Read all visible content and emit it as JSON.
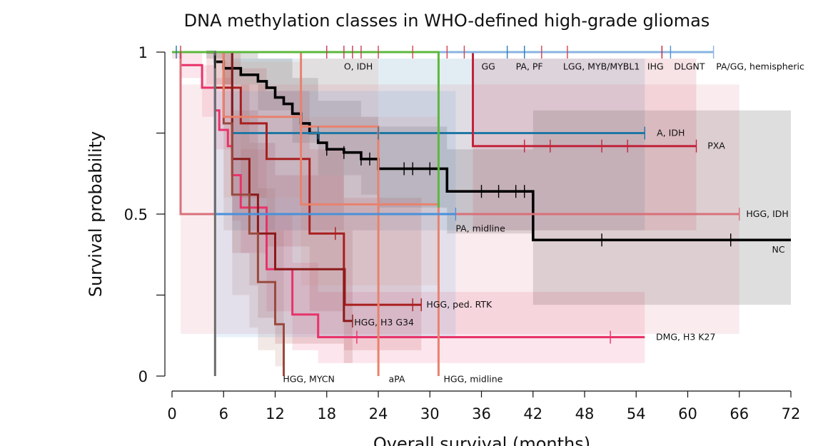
{
  "chart_data": {
    "type": "line",
    "subtype": "kaplan-meier",
    "title": "DNA methylation classes in WHO-defined high-grade gliomas",
    "xlabel": "Overall survival (months)",
    "ylabel": "Survival probability",
    "xlim": [
      0,
      72
    ],
    "ylim": [
      0,
      1
    ],
    "x_ticks": [
      0,
      6,
      12,
      18,
      24,
      30,
      36,
      42,
      48,
      54,
      60,
      66,
      72
    ],
    "x_tick_labels": [
      "0",
      "6",
      "12",
      "18",
      "24",
      "30",
      "36",
      "42",
      "48",
      "54",
      "60",
      "66",
      "72"
    ],
    "y_ticks": [
      0,
      0.25,
      0.5,
      0.75,
      1
    ],
    "y_tick_labels": {
      "0": "0",
      "0.5": "0.5",
      "1": "1"
    },
    "series": [
      {
        "name": "DMG, H3 K27",
        "color": "#e8336a",
        "steps": [
          [
            0,
            1
          ],
          [
            1,
            0.96
          ],
          [
            3.5,
            0.89
          ],
          [
            5,
            0.82
          ],
          [
            5.5,
            0.76
          ],
          [
            6.5,
            0.71
          ],
          [
            7,
            0.62
          ],
          [
            8,
            0.52
          ],
          [
            11,
            0.33
          ],
          [
            14,
            0.19
          ],
          [
            17,
            0.12
          ],
          [
            55,
            0.12
          ]
        ],
        "censor": [
          21.5,
          51
        ],
        "ci": [
          [
            0,
            0.98,
            1
          ],
          [
            1,
            0.92,
            1
          ],
          [
            3.5,
            0.8,
            0.96
          ],
          [
            5,
            0.7,
            0.92
          ],
          [
            7,
            0.48,
            0.8
          ],
          [
            8,
            0.38,
            0.7
          ],
          [
            11,
            0.2,
            0.5
          ],
          [
            14,
            0.08,
            0.35
          ],
          [
            17,
            0.04,
            0.26
          ],
          [
            55,
            0.04,
            0.26
          ]
        ]
      },
      {
        "name": "NC",
        "color": "#000000",
        "steps": [
          [
            4,
            1
          ],
          [
            5,
            0.97
          ],
          [
            6,
            0.95
          ],
          [
            8,
            0.93
          ],
          [
            10,
            0.91
          ],
          [
            11,
            0.89
          ],
          [
            12,
            0.86
          ],
          [
            13,
            0.84
          ],
          [
            14,
            0.81
          ],
          [
            15,
            0.78
          ],
          [
            16,
            0.75
          ],
          [
            17,
            0.72
          ],
          [
            18,
            0.7
          ],
          [
            20,
            0.69
          ],
          [
            22,
            0.67
          ],
          [
            24,
            0.64
          ],
          [
            32,
            0.57
          ],
          [
            42,
            0.42
          ],
          [
            72,
            0.42
          ]
        ],
        "censor": [
          5,
          18,
          20,
          22,
          23,
          27,
          28,
          30,
          36,
          38,
          40,
          41,
          50,
          65
        ],
        "ci": [
          [
            4,
            0.98,
            1
          ],
          [
            6,
            0.9,
            1
          ],
          [
            10,
            0.82,
            0.98
          ],
          [
            14,
            0.72,
            0.92
          ],
          [
            17,
            0.62,
            0.85
          ],
          [
            22,
            0.56,
            0.8
          ],
          [
            24,
            0.52,
            0.77
          ],
          [
            32,
            0.44,
            0.7
          ],
          [
            42,
            0.22,
            0.82
          ],
          [
            72,
            0.22,
            0.82
          ]
        ]
      },
      {
        "name": "A, IDH",
        "color": "#1f77a4",
        "steps": [
          [
            0,
            1
          ],
          [
            7,
            0.75
          ],
          [
            55,
            0.75
          ]
        ],
        "censor": [
          0.5,
          17,
          24,
          55
        ],
        "ci": [
          [
            0,
            1,
            1
          ],
          [
            7,
            0.45,
            0.98
          ],
          [
            55,
            0.45,
            0.98
          ]
        ]
      },
      {
        "name": "PXA",
        "color": "#c0243a",
        "steps": [
          [
            0,
            1
          ],
          [
            35,
            0.71
          ],
          [
            61,
            0.71
          ]
        ],
        "censor": [
          41,
          44,
          50,
          53,
          61
        ],
        "ci": [
          [
            0,
            1,
            1
          ],
          [
            35,
            0.45,
            0.98
          ],
          [
            61,
            0.45,
            0.98
          ]
        ]
      },
      {
        "name": "HGG, IDH",
        "color": "#d9707a",
        "steps": [
          [
            0,
            1
          ],
          [
            1,
            0.5
          ],
          [
            66,
            0.5
          ]
        ],
        "censor": [
          66
        ],
        "ci": [
          [
            0,
            1,
            1
          ],
          [
            1,
            0.13,
            0.9
          ],
          [
            66,
            0.13,
            0.9
          ]
        ]
      },
      {
        "name": "HGG, ped. RTK",
        "color": "#a81f1f",
        "steps": [
          [
            4,
            1
          ],
          [
            5,
            0.89
          ],
          [
            8,
            0.78
          ],
          [
            11,
            0.67
          ],
          [
            16,
            0.44
          ],
          [
            20,
            0.33
          ],
          [
            20.1,
            0.22
          ],
          [
            29,
            0.22
          ]
        ],
        "censor": [
          19,
          28,
          29
        ],
        "ci": [
          [
            4,
            0.9,
            1
          ],
          [
            8,
            0.55,
            0.95
          ],
          [
            11,
            0.4,
            0.88
          ],
          [
            16,
            0.2,
            0.7
          ],
          [
            20,
            0.08,
            0.55
          ],
          [
            29,
            0.08,
            0.55
          ]
        ]
      },
      {
        "name": "HGG, H3 G34",
        "color": "#8b1a1a",
        "steps": [
          [
            6,
            1
          ],
          [
            7,
            0.67
          ],
          [
            9,
            0.56
          ],
          [
            10,
            0.44
          ],
          [
            12,
            0.33
          ],
          [
            20,
            0.17
          ],
          [
            21,
            0.17
          ]
        ],
        "censor": [
          21
        ],
        "ci": [
          [
            6,
            0.9,
            1
          ],
          [
            7,
            0.38,
            0.9
          ],
          [
            9,
            0.28,
            0.82
          ],
          [
            10,
            0.18,
            0.72
          ],
          [
            12,
            0.1,
            0.62
          ],
          [
            20,
            0.04,
            0.45
          ],
          [
            21,
            0.04,
            0.45
          ]
        ]
      },
      {
        "name": "HGG, MYCN",
        "color": "#9a4a3f",
        "steps": [
          [
            5,
            1
          ],
          [
            6,
            0.78
          ],
          [
            7,
            0.56
          ],
          [
            9,
            0.44
          ],
          [
            10,
            0.29
          ],
          [
            12,
            0.16
          ],
          [
            13,
            0.0
          ]
        ],
        "censor": [],
        "ci": [
          [
            5,
            0.9,
            1
          ],
          [
            6,
            0.45,
            0.95
          ],
          [
            7,
            0.25,
            0.82
          ],
          [
            9,
            0.15,
            0.72
          ],
          [
            10,
            0.08,
            0.58
          ],
          [
            12,
            0.03,
            0.45
          ],
          [
            13,
            0,
            0.4
          ]
        ]
      },
      {
        "name": "aPA",
        "color": "#e8826e",
        "steps": [
          [
            0,
            1
          ],
          [
            15,
            0.77
          ],
          [
            24,
            0.54
          ],
          [
            24.01,
            0.0
          ]
        ],
        "censor": [],
        "ci": [
          [
            0,
            1,
            1
          ],
          [
            15,
            0.45,
            0.98
          ],
          [
            24,
            0.2,
            0.8
          ],
          [
            24.01,
            0,
            0.5
          ]
        ]
      },
      {
        "name": "HGG, midline",
        "color": "#e8826e",
        "steps": [
          [
            0,
            1
          ],
          [
            6,
            0.8
          ],
          [
            15,
            0.53
          ],
          [
            31,
            0.53
          ],
          [
            31.01,
            0.0
          ]
        ],
        "censor": [],
        "ci": [
          [
            0,
            1,
            1
          ],
          [
            6,
            0.55,
            0.97
          ],
          [
            15,
            0.28,
            0.8
          ],
          [
            31,
            0.1,
            0.7
          ],
          [
            31.01,
            0,
            0.5
          ]
        ]
      },
      {
        "name": "PA, midline",
        "color": "#4a90d9",
        "steps": [
          [
            0,
            1
          ],
          [
            5,
            0.5
          ],
          [
            33,
            0.5
          ]
        ],
        "censor": [
          33
        ],
        "ci": [
          [
            0,
            1,
            1
          ],
          [
            5,
            0.12,
            0.88
          ],
          [
            33,
            0.12,
            0.88
          ]
        ]
      },
      {
        "name": "O, IDH",
        "color": "#c63a55",
        "steps": [
          [
            0,
            1
          ],
          [
            22,
            1
          ]
        ],
        "censor": [
          1,
          18,
          20,
          21,
          22
        ]
      },
      {
        "name": "GG",
        "color": "#d6404f",
        "steps": [
          [
            0,
            1
          ],
          [
            35,
            1
          ]
        ],
        "censor": [
          24,
          28,
          32,
          34
        ]
      },
      {
        "name": "PA, PF",
        "color": "#2a7fb8",
        "steps": [
          [
            0,
            1
          ],
          [
            41,
            1
          ]
        ],
        "censor": [
          39,
          41
        ]
      },
      {
        "name": "LGG, MYB/MYBL1",
        "color": "#d6404f",
        "steps": [
          [
            0,
            1
          ],
          [
            46,
            1
          ]
        ],
        "censor": [
          43,
          46
        ]
      },
      {
        "name": "IHG",
        "color": "#c0243a",
        "steps": [
          [
            0,
            1
          ],
          [
            57,
            1
          ]
        ],
        "censor": [
          57
        ]
      },
      {
        "name": "DLGNT",
        "color": "#4a90d9",
        "steps": [
          [
            0,
            1
          ],
          [
            58,
            1
          ]
        ],
        "censor": [
          58
        ]
      },
      {
        "name": "PA/GG, hemispheric",
        "color": "#8ab4e0",
        "steps": [
          [
            0,
            1
          ],
          [
            63,
            1
          ]
        ],
        "censor": [
          63
        ]
      },
      {
        "name": "",
        "color": "#5cb83c",
        "steps": [
          [
            0,
            1
          ],
          [
            31,
            1
          ],
          [
            31.01,
            0.52
          ]
        ],
        "censor": []
      },
      {
        "name": "",
        "color": "#6b6b6b",
        "steps": [
          [
            5,
            1
          ],
          [
            5.01,
            0.0
          ]
        ],
        "censor": []
      }
    ],
    "series_labels": [
      {
        "series": "O, IDH",
        "text": "O, IDH",
        "x": 20,
        "y": 0.955,
        "anchor": "start"
      },
      {
        "series": "GG",
        "text": "GG",
        "x": 36,
        "y": 0.955,
        "anchor": "start"
      },
      {
        "series": "PA, PF",
        "text": "PA, PF",
        "x": 40,
        "y": 0.955,
        "anchor": "start"
      },
      {
        "series": "LGG, MYB/MYBL1",
        "text": "LGG, MYB/MYBL1",
        "x": 45.5,
        "y": 0.955,
        "anchor": "start"
      },
      {
        "series": "IHG",
        "text": "IHG",
        "x": 55.3,
        "y": 0.955,
        "anchor": "start"
      },
      {
        "series": "DLGNT",
        "text": "DLGNT",
        "x": 58.4,
        "y": 0.955,
        "anchor": "start"
      },
      {
        "series": "PA/GG, hemispheric",
        "text": "PA/GG, hemispheric",
        "x": 63.3,
        "y": 0.955,
        "anchor": "start"
      },
      {
        "series": "A, IDH",
        "text": "A, IDH",
        "x": 56.4,
        "y": 0.75,
        "anchor": "start"
      },
      {
        "series": "PXA",
        "text": "PXA",
        "x": 62.3,
        "y": 0.71,
        "anchor": "start"
      },
      {
        "series": "HGG, IDH",
        "text": "HGG, IDH",
        "x": 66.8,
        "y": 0.5,
        "anchor": "start"
      },
      {
        "series": "PA, midline",
        "text": "PA, midline",
        "x": 33,
        "y": 0.455,
        "anchor": "start"
      },
      {
        "series": "NC",
        "text": "NC",
        "x": 69.8,
        "y": 0.39,
        "anchor": "start"
      },
      {
        "series": "HGG, ped. RTK",
        "text": "HGG, ped. RTK",
        "x": 29.6,
        "y": 0.22,
        "anchor": "start"
      },
      {
        "series": "HGG, H3 G34",
        "text": "HGG, H3 G34",
        "x": 21.2,
        "y": 0.165,
        "anchor": "start"
      },
      {
        "series": "DMG, H3 K27",
        "text": "DMG, H3 K27",
        "x": 56.3,
        "y": 0.12,
        "anchor": "start"
      },
      {
        "series": "HGG, MYCN",
        "text": "HGG, MYCN",
        "x": 12.9,
        "y": -0.01,
        "anchor": "start"
      },
      {
        "series": "aPA",
        "text": "aPA",
        "x": 25.2,
        "y": -0.01,
        "anchor": "start"
      },
      {
        "series": "HGG, midline",
        "text": "HGG, midline",
        "x": 31.6,
        "y": -0.01,
        "anchor": "start"
      }
    ]
  }
}
